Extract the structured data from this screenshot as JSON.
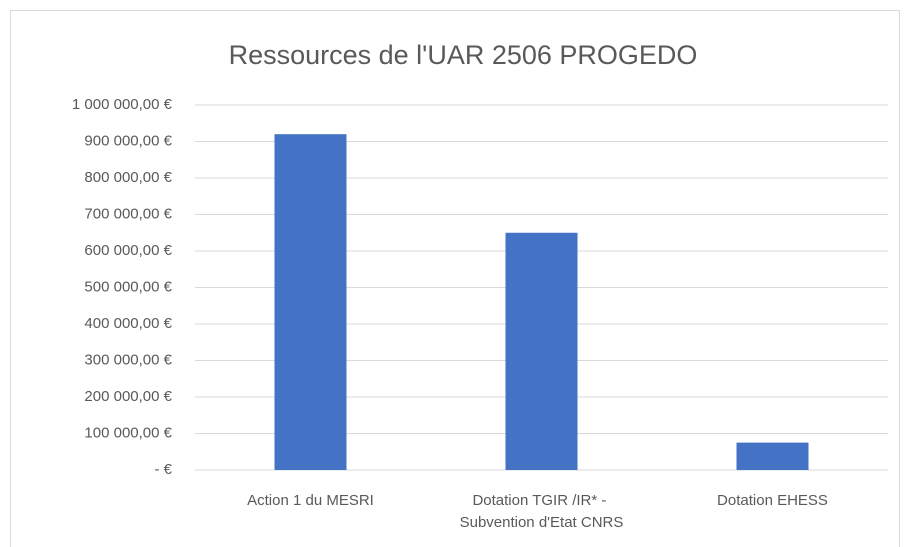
{
  "chart_data": {
    "type": "bar",
    "title": "Ressources de l'UAR 2506 PROGEDO",
    "categories": [
      "Action 1 du MESRI",
      "Dotation TGIR /IR* - Subvention d'Etat CNRS",
      "Dotation EHESS"
    ],
    "values": [
      920000,
      650000,
      75000
    ],
    "color": "#4472c4",
    "ylim": [
      0,
      1000000
    ],
    "yticks": [
      {
        "value": 0,
        "label": "-  €"
      },
      {
        "value": 100000,
        "label": "100 000,00 €"
      },
      {
        "value": 200000,
        "label": "200 000,00 €"
      },
      {
        "value": 300000,
        "label": "300 000,00 €"
      },
      {
        "value": 400000,
        "label": "400 000,00 €"
      },
      {
        "value": 500000,
        "label": "500 000,00 €"
      },
      {
        "value": 600000,
        "label": "600 000,00 €"
      },
      {
        "value": 700000,
        "label": "700 000,00 €"
      },
      {
        "value": 800000,
        "label": "800 000,00 €"
      },
      {
        "value": 900000,
        "label": "900 000,00 €"
      },
      {
        "value": 1000000,
        "label": "1 000 000,00 €"
      }
    ],
    "grid": true
  }
}
